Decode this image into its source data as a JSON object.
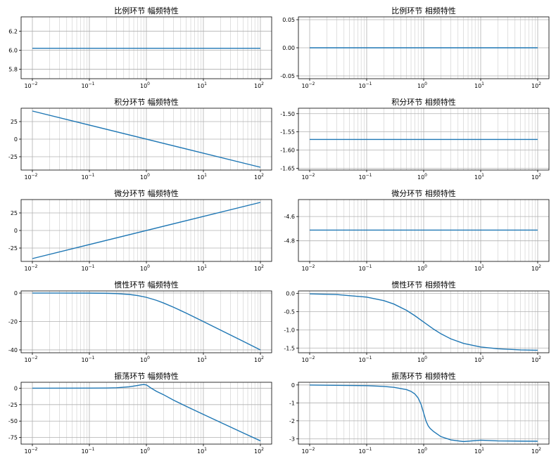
{
  "chart_data": [
    {
      "id": "p-amp",
      "type": "line",
      "title": "比例环节 幅频特性",
      "xscale": "log",
      "xlim": [
        0.01,
        100
      ],
      "ylim": [
        5.7,
        6.35
      ],
      "yticks": [
        "5.8",
        "6.0",
        "6.2"
      ],
      "ytick_values": [
        5.8,
        6.0,
        6.2
      ],
      "grid": true,
      "x": [
        0.01,
        100
      ],
      "y": [
        6.02,
        6.02
      ]
    },
    {
      "id": "p-phase",
      "type": "line",
      "title": "比例环节 相频特性",
      "xscale": "log",
      "xlim": [
        0.01,
        100
      ],
      "ylim": [
        -0.055,
        0.055
      ],
      "yticks": [
        "0.05",
        "0.00",
        "-0.05"
      ],
      "ytick_values": [
        0.05,
        0.0,
        -0.05
      ],
      "grid": true,
      "x": [
        0.01,
        100
      ],
      "y": [
        0,
        0
      ]
    },
    {
      "id": "i-amp",
      "type": "line",
      "title": "积分环节 幅频特性",
      "xscale": "log",
      "xlim": [
        0.01,
        100
      ],
      "ylim": [
        -44,
        44
      ],
      "yticks": [
        "25",
        "0",
        "-25"
      ],
      "ytick_values": [
        25,
        0,
        -25
      ],
      "grid": true,
      "x": [
        0.01,
        100
      ],
      "y": [
        40,
        -40
      ]
    },
    {
      "id": "i-phase",
      "type": "line",
      "title": "积分环节 相频特性",
      "xscale": "log",
      "xlim": [
        0.01,
        100
      ],
      "ylim": [
        -1.655,
        -1.485
      ],
      "yticks": [
        "-1.50",
        "-1.55",
        "-1.60",
        "-1.65"
      ],
      "ytick_values": [
        -1.5,
        -1.55,
        -1.6,
        -1.65
      ],
      "grid": true,
      "x": [
        0.01,
        100
      ],
      "y": [
        -1.5708,
        -1.5708
      ]
    },
    {
      "id": "d-amp",
      "type": "line",
      "title": "微分环节 幅频特性",
      "xscale": "log",
      "xlim": [
        0.01,
        100
      ],
      "ylim": [
        -44,
        44
      ],
      "yticks": [
        "25",
        "0",
        "-25"
      ],
      "ytick_values": [
        25,
        0,
        -25
      ],
      "grid": true,
      "x": [
        0.01,
        100
      ],
      "y": [
        -40,
        40
      ]
    },
    {
      "id": "d-phase",
      "type": "line",
      "title": "微分环节 相频特性",
      "xscale": "log",
      "xlim": [
        0.01,
        100
      ],
      "ylim": [
        -4.97,
        -4.46
      ],
      "yticks": [
        "-4.6",
        "-4.8"
      ],
      "ytick_values": [
        -4.6,
        -4.8
      ],
      "grid": true,
      "x": [
        0.01,
        100
      ],
      "y": [
        -4.712,
        -4.712
      ]
    },
    {
      "id": "inertia-amp",
      "type": "line",
      "title": "惯性环节 幅频特性",
      "xscale": "log",
      "xlim": [
        0.01,
        100
      ],
      "ylim": [
        -42,
        1.5
      ],
      "yticks": [
        "0",
        "-20",
        "-40"
      ],
      "ytick_values": [
        0,
        -20,
        -40
      ],
      "grid": true,
      "x": [
        0.01,
        0.03,
        0.1,
        0.2,
        0.3,
        0.5,
        0.7,
        1,
        1.5,
        2,
        3,
        5,
        10,
        20,
        50,
        100
      ],
      "y": [
        0,
        -0.004,
        -0.04,
        -0.17,
        -0.37,
        -0.97,
        -1.74,
        -3.01,
        -5.12,
        -6.99,
        -10.0,
        -14.15,
        -20.04,
        -26.03,
        -33.98,
        -40.0
      ]
    },
    {
      "id": "inertia-phase",
      "type": "line",
      "title": "惯性环节 相频特性",
      "xscale": "log",
      "xlim": [
        0.01,
        100
      ],
      "ylim": [
        -1.63,
        0.07
      ],
      "yticks": [
        "0.0",
        "-0.5",
        "-1.0",
        "-1.5"
      ],
      "ytick_values": [
        0,
        -0.5,
        -1.0,
        -1.5
      ],
      "grid": true,
      "x": [
        0.01,
        0.03,
        0.1,
        0.2,
        0.3,
        0.5,
        0.7,
        1,
        1.5,
        2,
        3,
        5,
        10,
        20,
        50,
        100
      ],
      "y": [
        -0.01,
        -0.03,
        -0.1,
        -0.197,
        -0.291,
        -0.464,
        -0.611,
        -0.785,
        -0.983,
        -1.107,
        -1.249,
        -1.373,
        -1.471,
        -1.521,
        -1.551,
        -1.561
      ]
    },
    {
      "id": "osc-amp",
      "type": "line",
      "title": "振荡环节 幅频特性",
      "xscale": "log",
      "xlim": [
        0.01,
        100
      ],
      "ylim": [
        -85,
        9
      ],
      "yticks": [
        "0",
        "-25",
        "-50",
        "-75"
      ],
      "ytick_values": [
        0,
        -25,
        -50,
        -75
      ],
      "grid": true,
      "x": [
        0.01,
        0.1,
        0.2,
        0.3,
        0.5,
        0.7,
        0.8,
        0.9,
        1.0,
        1.1,
        1.2,
        1.5,
        2,
        3,
        5,
        10,
        20,
        50,
        100
      ],
      "y": [
        0,
        0.07,
        0.3,
        0.7,
        2.1,
        4.1,
        5.1,
        5.6,
        4.9,
        2.7,
        0.3,
        -4.7,
        -9.9,
        -18.2,
        -27.6,
        -39.9,
        -52.0,
        -68.0,
        -80.0
      ]
    },
    {
      "id": "osc-phase",
      "type": "line",
      "title": "振荡环节 相频特性",
      "xscale": "log",
      "xlim": [
        0.01,
        100
      ],
      "ylim": [
        -3.3,
        0.15
      ],
      "yticks": [
        "0",
        "-1",
        "-2",
        "-3"
      ],
      "ytick_values": [
        0,
        -1,
        -2,
        -3
      ],
      "grid": true,
      "x": [
        0.01,
        0.1,
        0.2,
        0.3,
        0.5,
        0.6,
        0.7,
        0.8,
        0.9,
        1.0,
        1.1,
        1.2,
        1.3,
        1.5,
        2,
        3,
        5,
        10,
        20,
        50,
        100
      ],
      "y": [
        -0.004,
        -0.04,
        -0.083,
        -0.132,
        -0.261,
        -0.359,
        -0.501,
        -0.727,
        -1.083,
        -1.571,
        -2.017,
        -2.281,
        -2.428,
        -2.603,
        -2.88,
        -3.067,
        -3.158,
        -3.081,
        -3.121,
        -3.133,
        -3.139
      ]
    }
  ]
}
